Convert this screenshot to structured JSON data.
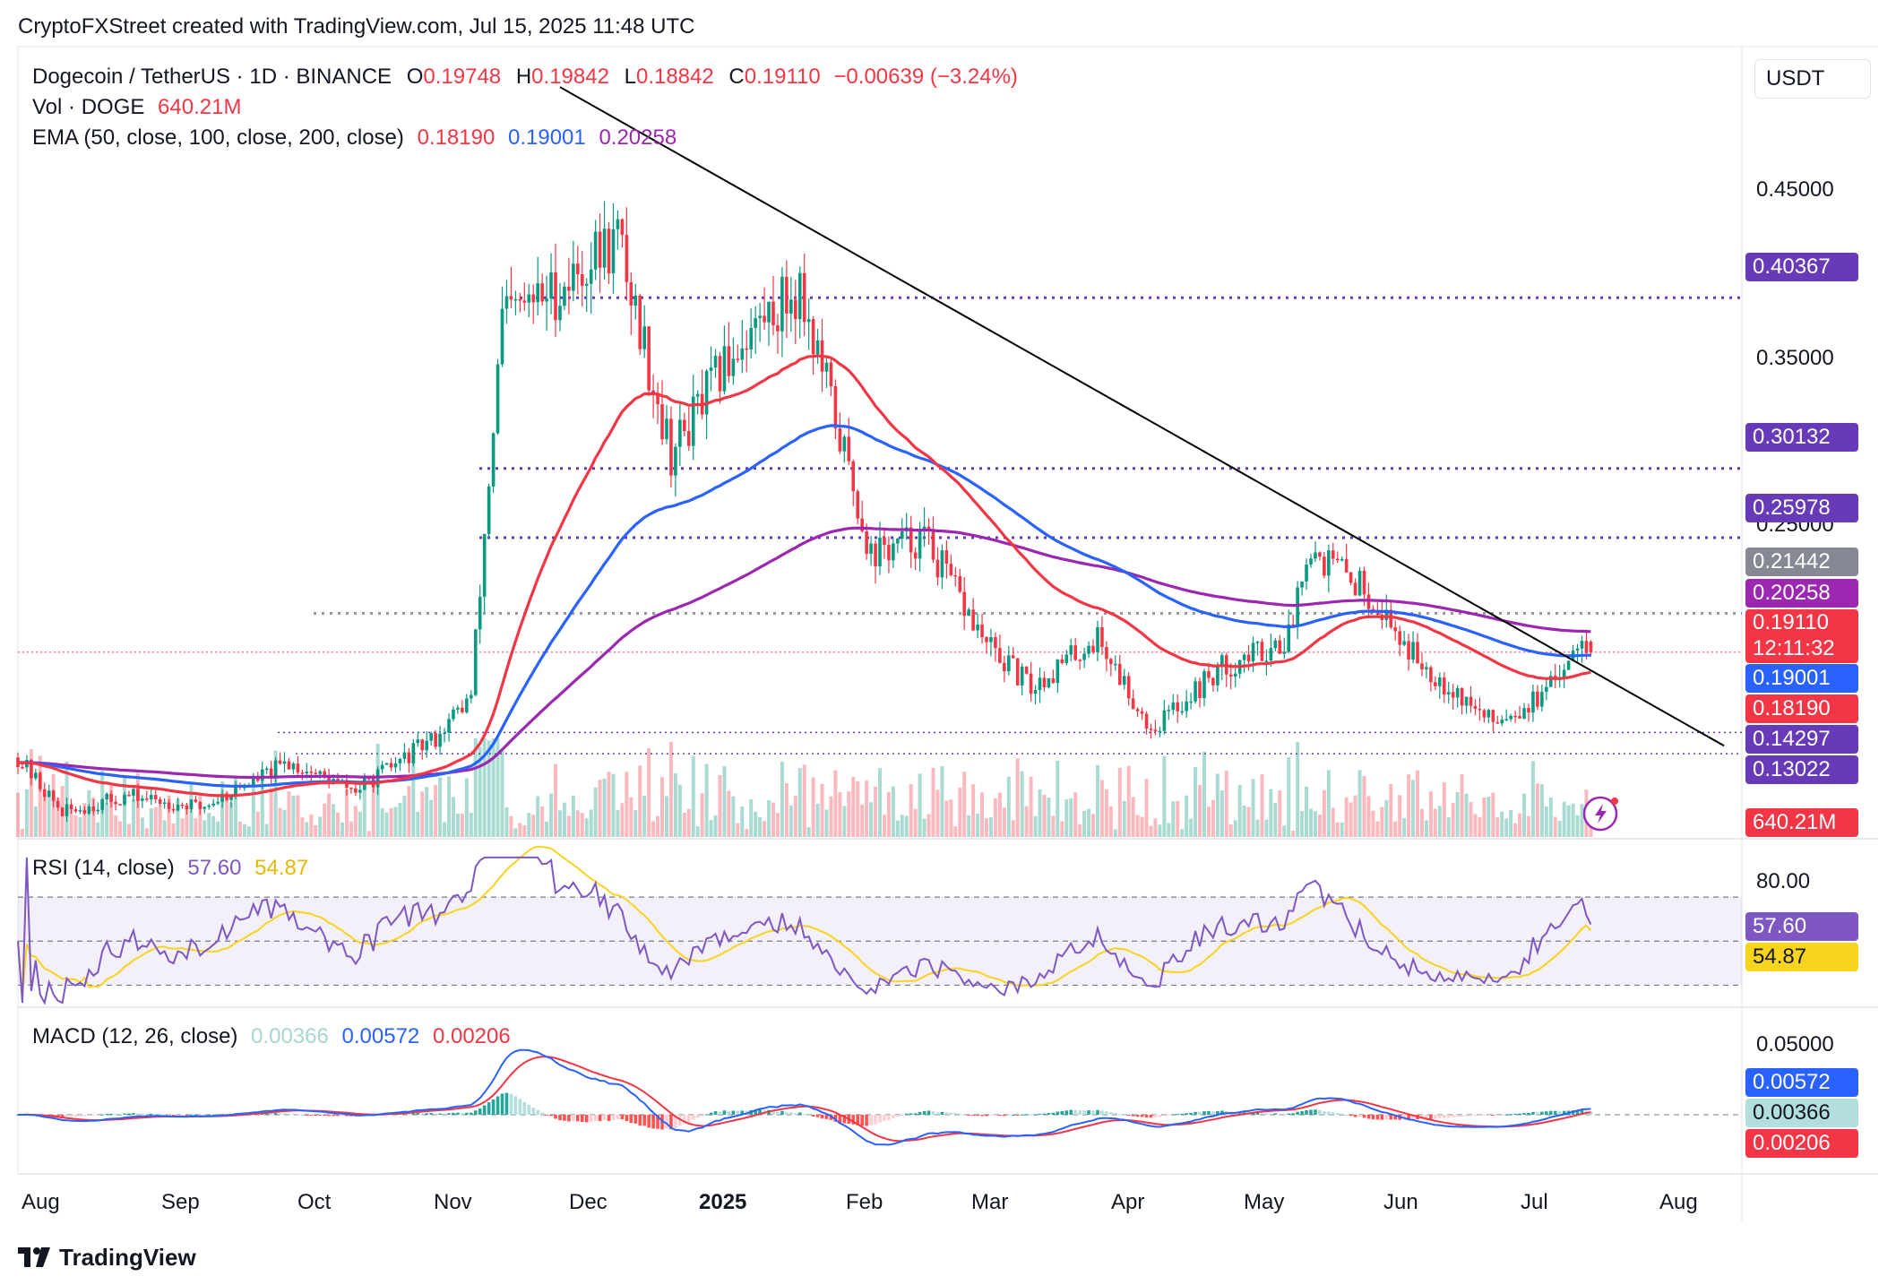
{
  "page": {
    "credit": "CryptoFXStreet created with TradingView.com, Jul 15, 2025 11:48 UTC",
    "footer_brand": "TradingView",
    "currency_button": "USDT"
  },
  "header": {
    "symbol": "Dogecoin / TetherUS · 1D · BINANCE",
    "o_label": "O",
    "o_value": "0.19748",
    "h_label": "H",
    "h_value": "0.19842",
    "l_label": "L",
    "l_value": "0.18842",
    "c_label": "C",
    "c_value": "0.19110",
    "change": "−0.00639 (−3.24%)",
    "vol_label": "Vol · DOGE",
    "vol_value": "640.21M",
    "ema_label": "EMA (50, close, 100, close, 200, close)",
    "ema50_value": "0.18190",
    "ema100_value": "0.19001",
    "ema200_value": "0.20258"
  },
  "rsi_header": {
    "label": "RSI (14, close)",
    "rsi_value": "57.60",
    "ma_value": "54.87"
  },
  "macd_header": {
    "label": "MACD (12, 26, close)",
    "hist_value": "0.00366",
    "macd_value": "0.00572",
    "signal_value": "0.00206"
  },
  "axis": {
    "price_ticks": [
      "0.45000",
      "0.35000",
      "0.25000"
    ],
    "rsi_ticks": [
      "80.00"
    ],
    "macd_ticks": [
      "0.05000"
    ],
    "months": [
      "Aug",
      "Sep",
      "Oct",
      "Nov",
      "Dec",
      "2025",
      "Feb",
      "Mar",
      "Apr",
      "May",
      "Jun",
      "Jul",
      "Aug"
    ]
  },
  "price_tags": {
    "level_40367": "0.40367",
    "level_30132": "0.30132",
    "level_25978": "0.25978",
    "level_21442": "0.21442",
    "ema200": "0.20258",
    "last": "0.19110",
    "countdown": "12:11:32",
    "ema100": "0.19001",
    "ema50": "0.18190",
    "level_14297": "0.14297",
    "level_13022": "0.13022",
    "volume": "640.21M",
    "rsi": "57.60",
    "rsi_ma": "54.87",
    "macd": "0.00572",
    "hist": "0.00366",
    "signal": "0.00206"
  },
  "colors": {
    "up": "#089981",
    "down": "#f23645",
    "ema50": "#f23645",
    "ema100": "#2962ff",
    "ema200": "#9c27b0",
    "level": "#673ab7",
    "rsi": "#7e57c2",
    "rsi_ma": "#f7d41e",
    "macd": "#2962ff",
    "signal": "#f23645"
  },
  "chart_data": [
    {
      "type": "candlestick",
      "title": "Dogecoin / TetherUS · 1D · BINANCE",
      "ylim": [
        0.07,
        0.53
      ],
      "x_months": [
        "Aug",
        "Sep",
        "Oct",
        "Nov",
        "Dec",
        "2025",
        "Feb",
        "Mar",
        "Apr",
        "May",
        "Jun",
        "Jul",
        "Aug"
      ],
      "close_path": [
        [
          "2024-07-26",
          0.128
        ],
        [
          "2024-08-05",
          0.095
        ],
        [
          "2024-08-20",
          0.105
        ],
        [
          "2024-09-05",
          0.098
        ],
        [
          "2024-09-25",
          0.125
        ],
        [
          "2024-10-10",
          0.108
        ],
        [
          "2024-10-28",
          0.14
        ],
        [
          "2024-11-05",
          0.165
        ],
        [
          "2024-11-12",
          0.39
        ],
        [
          "2024-11-25",
          0.41
        ],
        [
          "2024-12-08",
          0.44
        ],
        [
          "2024-12-20",
          0.31
        ],
        [
          "2025-01-05",
          0.38
        ],
        [
          "2025-01-18",
          0.41
        ],
        [
          "2025-01-26",
          0.33
        ],
        [
          "2025-02-03",
          0.25
        ],
        [
          "2025-02-15",
          0.26
        ],
        [
          "2025-03-01",
          0.195
        ],
        [
          "2025-03-11",
          0.17
        ],
        [
          "2025-03-26",
          0.2
        ],
        [
          "2025-04-07",
          0.145
        ],
        [
          "2025-04-22",
          0.18
        ],
        [
          "2025-05-08",
          0.2
        ],
        [
          "2025-05-12",
          0.255
        ],
        [
          "2025-05-25",
          0.23
        ],
        [
          "2025-06-05",
          0.19
        ],
        [
          "2025-06-22",
          0.15
        ],
        [
          "2025-07-05",
          0.165
        ],
        [
          "2025-07-13",
          0.205
        ],
        [
          "2025-07-15",
          0.1911
        ]
      ],
      "last_bar": {
        "open": 0.19748,
        "high": 0.19842,
        "low": 0.18842,
        "close": 0.1911
      },
      "ema": [
        {
          "name": "EMA 50",
          "last": 0.1819
        },
        {
          "name": "EMA 100",
          "last": 0.19001
        },
        {
          "name": "EMA 200",
          "last": 0.20258
        }
      ],
      "horizontal_levels": [
        0.40367,
        0.30132,
        0.25978,
        0.21442,
        0.14297,
        0.13022
      ],
      "trendline": {
        "from": [
          "2024-11-25",
          0.53
        ],
        "to": [
          "2025-08-14",
          0.135
        ]
      },
      "volume_last": "640.21M"
    },
    {
      "type": "line",
      "title": "RSI (14, close)",
      "ylim": [
        20,
        90
      ],
      "bands": [
        30,
        50,
        70
      ],
      "rsi_last": 57.6,
      "ma_last": 54.87
    },
    {
      "type": "line",
      "title": "MACD (12, 26, close)",
      "macd_last": 0.00572,
      "signal_last": 0.00206,
      "histogram_last": 0.00366
    }
  ]
}
